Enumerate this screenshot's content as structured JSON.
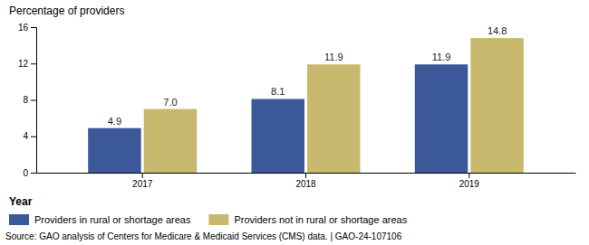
{
  "chart_data": {
    "type": "bar",
    "ylabel": "Percentage of providers",
    "xlabel": "Year",
    "categories": [
      "2017",
      "2018",
      "2019"
    ],
    "series": [
      {
        "name": "Providers in rural or shortage areas",
        "color": "#3B5998",
        "values": [
          4.9,
          8.1,
          11.9
        ],
        "value_labels": [
          "4.9",
          "8.1",
          "11.9"
        ]
      },
      {
        "name": "Providers not in rural or shortage areas",
        "color": "#C8B96E",
        "values": [
          7.0,
          11.9,
          14.8
        ],
        "value_labels": [
          "7.0",
          "11.9",
          "14.8"
        ]
      }
    ],
    "ylim": [
      0,
      16
    ],
    "yticks": [
      0,
      4,
      8,
      12,
      16
    ],
    "grid": false,
    "legend": "bottom",
    "data_labels": true,
    "annotations": [
      "Source: GAO analysis of Centers for Medicare & Medicaid Services (CMS) data.  |  GAO-24-107106"
    ]
  }
}
